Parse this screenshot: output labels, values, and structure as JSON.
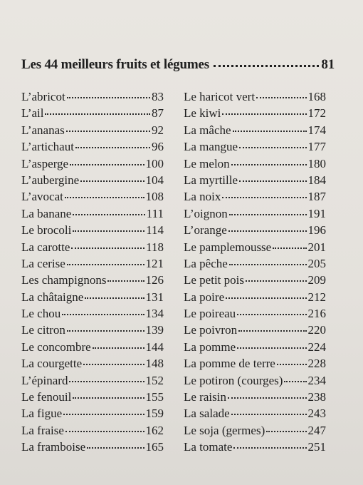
{
  "heading": {
    "title": "Les 44 meilleurs fruits et légumes",
    "page": "81"
  },
  "left_column": [
    {
      "name": "L’abricot",
      "page": "83"
    },
    {
      "name": "L’ail",
      "page": "87"
    },
    {
      "name": "L’ananas",
      "page": "92"
    },
    {
      "name": "L’artichaut",
      "page": "96"
    },
    {
      "name": "L’asperge",
      "page": "100"
    },
    {
      "name": "L’aubergine",
      "page": "104"
    },
    {
      "name": "L’avocat",
      "page": "108"
    },
    {
      "name": "La banane",
      "page": "111"
    },
    {
      "name": "Le brocoli",
      "page": "114"
    },
    {
      "name": "La carotte",
      "page": "118"
    },
    {
      "name": "La cerise",
      "page": "121"
    },
    {
      "name": "Les champignons",
      "page": "126"
    },
    {
      "name": "La châtaigne",
      "page": "131"
    },
    {
      "name": "Le chou",
      "page": "134"
    },
    {
      "name": "Le citron",
      "page": "139"
    },
    {
      "name": "Le concombre",
      "page": "144"
    },
    {
      "name": "La courgette",
      "page": "148"
    },
    {
      "name": "L’épinard",
      "page": "152"
    },
    {
      "name": "Le fenouil",
      "page": "155"
    },
    {
      "name": "La figue",
      "page": "159"
    },
    {
      "name": "La fraise",
      "page": "162"
    },
    {
      "name": "La framboise",
      "page": "165"
    }
  ],
  "right_column": [
    {
      "name": "Le haricot vert",
      "page": "168"
    },
    {
      "name": "Le kiwi",
      "page": "172"
    },
    {
      "name": "La mâche",
      "page": "174"
    },
    {
      "name": "La mangue",
      "page": "177"
    },
    {
      "name": "Le melon",
      "page": "180"
    },
    {
      "name": "La myrtille",
      "page": "184"
    },
    {
      "name": "La noix",
      "page": "187"
    },
    {
      "name": "L’oignon",
      "page": "191"
    },
    {
      "name": "L’orange",
      "page": "196"
    },
    {
      "name": "Le pamplemousse",
      "page": "201"
    },
    {
      "name": "La pêche",
      "page": "205"
    },
    {
      "name": "Le petit pois",
      "page": "209"
    },
    {
      "name": "La poire",
      "page": "212"
    },
    {
      "name": "Le poireau",
      "page": "216"
    },
    {
      "name": "Le poivron",
      "page": "220"
    },
    {
      "name": "La pomme",
      "page": "224"
    },
    {
      "name": "La pomme de terre",
      "page": "228"
    },
    {
      "name": "Le potiron (courges)",
      "page": "234"
    },
    {
      "name": "Le raisin",
      "page": "238"
    },
    {
      "name": "La salade",
      "page": "243"
    },
    {
      "name": "Le soja (germes)",
      "page": "247"
    },
    {
      "name": "La tomate",
      "page": "251"
    }
  ]
}
